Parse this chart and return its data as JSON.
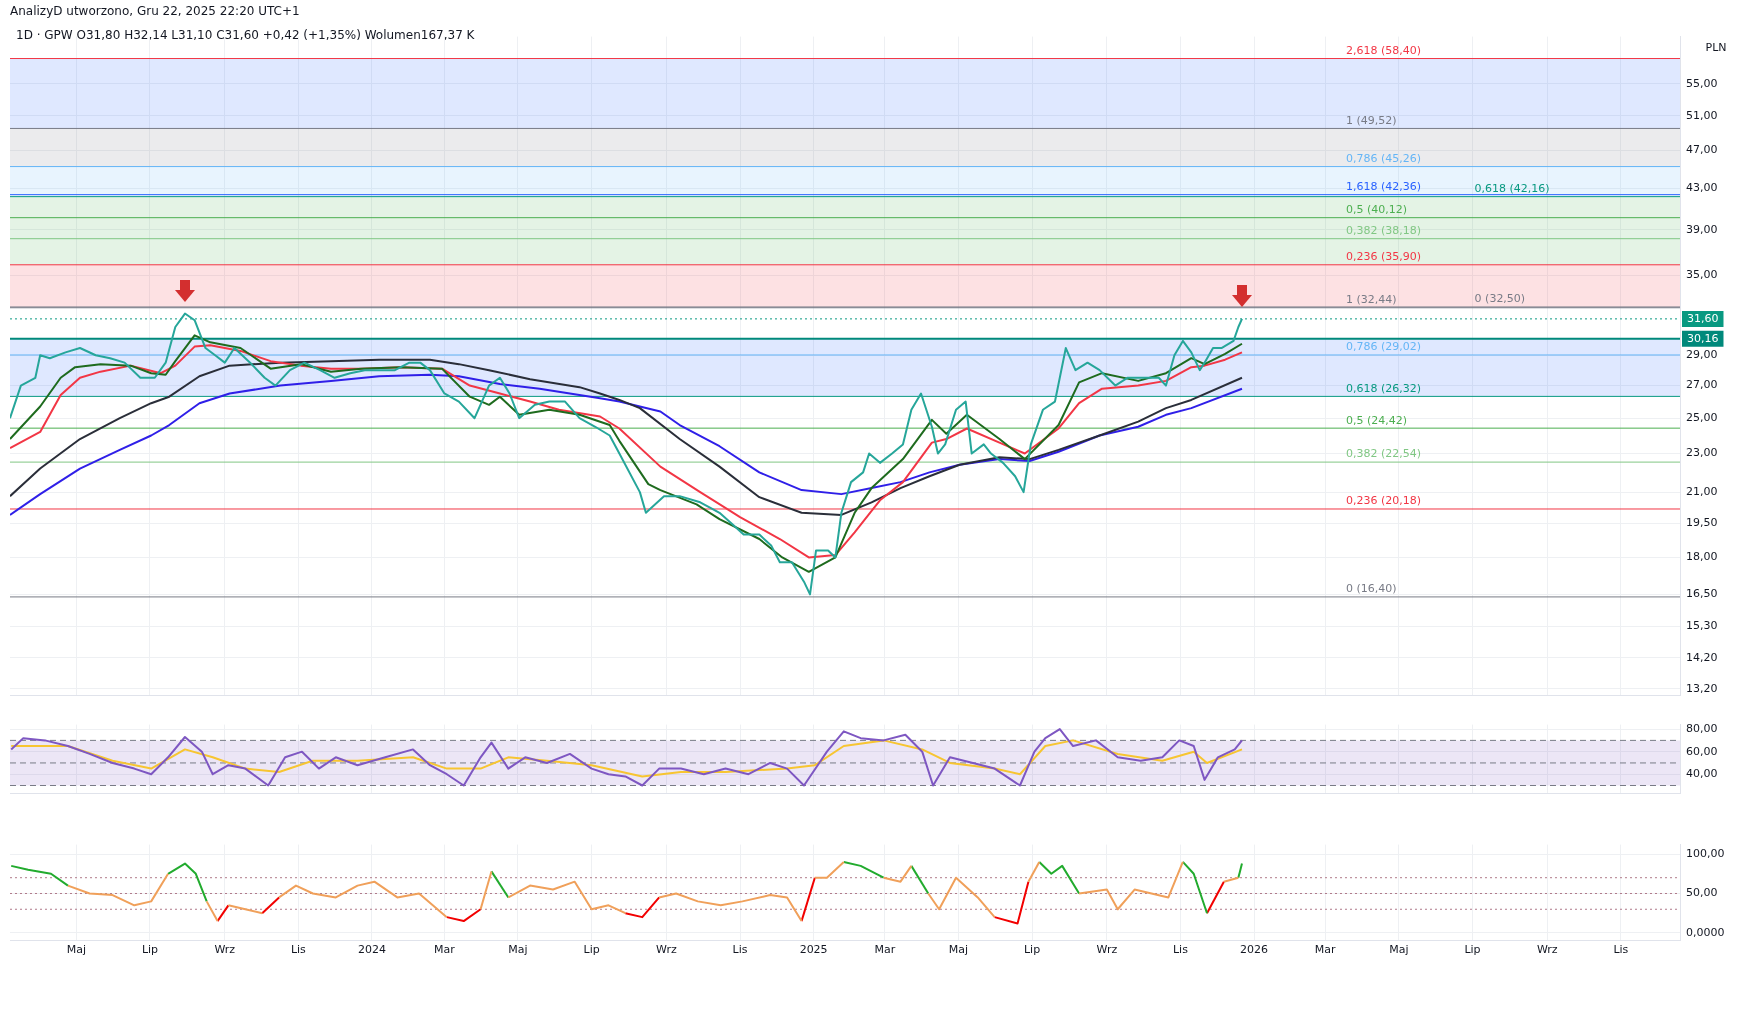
{
  "chart_data": [
    {
      "type": "line",
      "title": "AnalizyD utworzono, Gru 22, 2025 22:20 UTC+1",
      "subtitle": "1D · GPW O31,80 H32,14 L31,10 C31,60 +0,42 (+1,35%) Wolumen167,37 K",
      "ylabel": "PLN",
      "log": "y",
      "grid": true,
      "marker": "none",
      "tick_labels": "y",
      "xlim": [
        "2023-03-07",
        "2026-12-20"
      ],
      "xticks": [
        {
          "value": "2023-05-01",
          "label": null
        },
        {
          "value": "2023-07-01",
          "label": null
        },
        {
          "value": "2023-09-01",
          "label": null
        },
        {
          "value": "2023-11-01",
          "label": null
        },
        {
          "value": "2024-01-01",
          "label": null
        },
        {
          "value": "2024-03-01",
          "label": null
        },
        {
          "value": "2024-05-01",
          "label": null
        },
        {
          "value": "2024-07-01",
          "label": null
        },
        {
          "value": "2024-09-01",
          "label": null
        },
        {
          "value": "2024-11-01",
          "label": null
        },
        {
          "value": "2025-01-01",
          "label": null
        },
        {
          "value": "2025-03-01",
          "label": null
        },
        {
          "value": "2025-05-01",
          "label": null
        },
        {
          "value": "2025-07-01",
          "label": null
        },
        {
          "value": "2025-09-01",
          "label": null
        },
        {
          "value": "2025-11-01",
          "label": null
        },
        {
          "value": "2026-01-01",
          "label": null
        },
        {
          "value": "2026-03-01",
          "label": null
        },
        {
          "value": "2026-05-01",
          "label": null
        },
        {
          "value": "2026-07-01",
          "label": null
        },
        {
          "value": "2026-09-01",
          "label": null
        },
        {
          "value": "2026-11-01",
          "label": null
        }
      ],
      "ylim": [
        13.0,
        61.5
      ],
      "yticks": [
        {
          "value": 13.2,
          "label": "13,20"
        },
        {
          "value": 14.2,
          "label": "14,20"
        },
        {
          "value": 15.3,
          "label": "15,30"
        },
        {
          "value": 16.5,
          "label": "16,50"
        },
        {
          "value": 18,
          "label": "18,00"
        },
        {
          "value": 19.5,
          "label": "19,50"
        },
        {
          "value": 21,
          "label": "21,00"
        },
        {
          "value": 23,
          "label": "23,00"
        },
        {
          "value": 25,
          "label": "25,00"
        },
        {
          "value": 27,
          "label": "27,00"
        },
        {
          "value": 29,
          "label": "29,00"
        },
        {
          "value": 35,
          "label": "35,00"
        },
        {
          "value": 39,
          "label": "39,00"
        },
        {
          "value": 43,
          "label": "43,00"
        },
        {
          "value": 47,
          "label": "47,00"
        },
        {
          "value": 51,
          "label": "51,00"
        },
        {
          "value": 55,
          "label": "55,00"
        }
      ],
      "bands": [
        {
          "axis": "y",
          "from": 26.32,
          "to": 30.16,
          "color": "#2962ff"
        },
        {
          "axis": "y",
          "from": 32.5,
          "to": 35.9,
          "color": "#f23645"
        },
        {
          "axis": "y",
          "from": 35.9,
          "to": 42.16,
          "color": "#4caf50"
        },
        {
          "axis": "y",
          "from": 42.16,
          "to": 45.26,
          "color": "#64b5f6"
        },
        {
          "axis": "y",
          "from": 45.26,
          "to": 49.52,
          "color": "#787b86"
        },
        {
          "axis": "y",
          "from": 49.52,
          "to": 58.4,
          "color": "#2962ff"
        }
      ],
      "ref_lines": [
        {
          "axis": "y",
          "value": 58.4,
          "label": "2,618 (58,40)",
          "color": "#f23645"
        },
        {
          "axis": "y",
          "value": 49.52,
          "label": "1 (49,52)",
          "color": "#787b86"
        },
        {
          "axis": "y",
          "value": 45.26,
          "label": "0,786 (45,26)",
          "color": "#64b5f6"
        },
        {
          "axis": "y",
          "value": 42.36,
          "label": "1,618 (42,36)",
          "color": "#2962ff"
        },
        {
          "axis": "y",
          "value": 42.16,
          "label": "0,618 (42,16)",
          "color": "#089981"
        },
        {
          "axis": "y",
          "value": 40.12,
          "label": "0,5 (40,12)",
          "color": "#4caf50"
        },
        {
          "axis": "y",
          "value": 38.18,
          "label": "0,382 (38,18)",
          "color": "#81c784"
        },
        {
          "axis": "y",
          "value": 35.9,
          "label": "0,236 (35,90)",
          "color": "#f23645"
        },
        {
          "axis": "y",
          "value": 32.44,
          "label": "1 (32,44)",
          "color": "#787b86"
        },
        {
          "axis": "y",
          "value": 32.5,
          "label": "0 (32,50)",
          "color": "#787b86"
        },
        {
          "axis": "y",
          "value": 29.02,
          "label": "0,786 (29,02)",
          "color": "#64b5f6"
        },
        {
          "axis": "y",
          "value": 26.32,
          "label": "0,618 (26,32)",
          "color": "#089981"
        },
        {
          "axis": "y",
          "value": 24.42,
          "label": "0,5 (24,42)",
          "color": "#4caf50"
        },
        {
          "axis": "y",
          "value": 22.54,
          "label": "0,382 (22,54)",
          "color": "#81c784"
        },
        {
          "axis": "y",
          "value": 20.18,
          "label": "0,236 (20,18)",
          "color": "#f23645"
        },
        {
          "axis": "y",
          "value": 16.4,
          "label": "0 (16,40)",
          "color": "#787b86"
        },
        {
          "axis": "y",
          "value": 31.6,
          "label": "31,60",
          "color": "#089981",
          "line_style": "dotted"
        },
        {
          "axis": "y",
          "value": 30.16,
          "label": "30,16",
          "color": "#00897b",
          "line_style": "solid"
        }
      ],
      "series": [
        {
          "color": "#26a69a",
          "x": [
            "2023-03-07",
            "2023-03-16",
            "2023-03-28",
            "2023-04-01",
            "2023-04-09",
            "2023-04-22",
            "2023-05-04",
            "2023-05-17",
            "2023-05-29",
            "2023-06-10",
            "2023-06-23",
            "2023-07-05",
            "2023-07-14",
            "2023-07-22",
            "2023-07-30",
            "2023-08-07",
            "2023-08-16",
            "2023-08-24",
            "2023-09-01",
            "2023-09-09",
            "2023-09-22",
            "2023-10-04",
            "2023-10-13",
            "2023-10-25",
            "2023-11-06",
            "2023-11-19",
            "2023-12-01",
            "2023-12-14",
            "2023-12-26",
            "2024-01-07",
            "2024-01-20",
            "2024-02-01",
            "2024-02-10",
            "2024-02-18",
            "2024-03-01",
            "2024-03-13",
            "2024-03-26",
            "2024-04-07",
            "2024-04-16",
            "2024-04-24",
            "2024-05-02",
            "2024-05-15",
            "2024-05-27",
            "2024-06-09",
            "2024-06-21",
            "2024-07-04",
            "2024-07-16",
            "2024-07-24",
            "2024-08-10",
            "2024-08-15",
            "2024-08-30",
            "2024-09-12",
            "2024-09-29",
            "2024-10-15",
            "2024-10-25",
            "2024-11-04",
            "2024-11-17",
            "2024-11-27",
            "2024-12-04",
            "2024-12-14",
            "2024-12-24",
            "2024-12-29",
            "2025-01-03",
            "2025-01-13",
            "2025-01-19",
            "2025-01-24",
            "2025-02-01",
            "2025-02-11",
            "2025-02-16",
            "2025-02-25",
            "2025-03-07",
            "2025-03-16",
            "2025-03-23",
            "2025-03-31",
            "2025-04-09",
            "2025-04-14",
            "2025-04-20",
            "2025-04-29",
            "2025-05-07",
            "2025-05-12",
            "2025-05-22",
            "2025-05-28",
            "2025-06-07",
            "2025-06-17",
            "2025-06-24",
            "2025-06-30",
            "2025-07-10",
            "2025-07-20",
            "2025-07-29",
            "2025-08-06",
            "2025-08-16",
            "2025-08-26",
            "2025-09-08",
            "2025-09-18",
            "2025-10-01",
            "2025-10-14",
            "2025-10-20",
            "2025-10-27",
            "2025-11-03",
            "2025-11-10",
            "2025-11-17",
            "2025-11-21",
            "2025-11-28",
            "2025-12-05",
            "2025-12-15",
            "2025-12-19",
            "2025-12-22"
          ],
          "values": [
            25.0,
            27.0,
            27.5,
            29.0,
            28.8,
            29.2,
            29.5,
            29.0,
            28.8,
            28.5,
            27.5,
            27.5,
            28.5,
            31.0,
            32.0,
            31.5,
            29.5,
            29.0,
            28.5,
            29.5,
            28.5,
            27.5,
            27.0,
            28.0,
            28.5,
            28.0,
            27.5,
            27.8,
            28.0,
            28.0,
            28.0,
            28.5,
            28.5,
            28.0,
            26.5,
            26.0,
            25.0,
            27.0,
            27.5,
            26.5,
            25.0,
            25.8,
            26.0,
            26.0,
            25.0,
            24.5,
            24.0,
            23.0,
            21.0,
            20.0,
            20.8,
            20.8,
            20.5,
            20.0,
            19.5,
            19.0,
            19.0,
            18.5,
            17.8,
            17.8,
            17.0,
            16.5,
            18.3,
            18.3,
            18.0,
            20.0,
            21.5,
            22.0,
            23.0,
            22.5,
            23.0,
            23.5,
            25.5,
            26.5,
            24.5,
            23.0,
            23.5,
            25.5,
            26.0,
            23.0,
            23.5,
            23.0,
            22.5,
            21.8,
            21.0,
            23.5,
            25.5,
            26.0,
            29.5,
            28.0,
            28.5,
            28.0,
            27.0,
            27.5,
            27.5,
            27.5,
            27.0,
            29.0,
            30.0,
            29.2,
            28.0,
            28.5,
            29.5,
            29.5,
            30.0,
            31.0,
            31.6
          ]
        },
        {
          "color": "#1e6b1e",
          "x": [
            "2023-03-07",
            "2023-04-01",
            "2023-04-18",
            "2023-04-30",
            "2023-05-21",
            "2023-06-15",
            "2023-07-02",
            "2023-07-14",
            "2023-07-22",
            "2023-08-07",
            "2023-08-20",
            "2023-09-14",
            "2023-10-09",
            "2023-11-03",
            "2023-11-28",
            "2023-12-23",
            "2024-01-25",
            "2024-02-28",
            "2024-03-22",
            "2024-04-07",
            "2024-04-16",
            "2024-05-02",
            "2024-05-27",
            "2024-06-21",
            "2024-07-16",
            "2024-07-24",
            "2024-08-17",
            "2024-08-27",
            "2024-09-26",
            "2024-10-15",
            "2024-11-17",
            "2024-12-06",
            "2024-12-28",
            "2025-01-19",
            "2025-02-04",
            "2025-02-18",
            "2025-03-16",
            "2025-04-09",
            "2025-04-21",
            "2025-05-08",
            "2025-06-04",
            "2025-06-25",
            "2025-07-23",
            "2025-08-09",
            "2025-08-28",
            "2025-09-27",
            "2025-10-20",
            "2025-11-10",
            "2025-11-21",
            "2025-12-08",
            "2025-12-22"
          ],
          "values": [
            23.8,
            25.7,
            27.5,
            28.2,
            28.4,
            28.3,
            27.8,
            27.7,
            28.6,
            30.4,
            29.9,
            29.5,
            28.1,
            28.4,
            27.9,
            28.1,
            28.2,
            28.1,
            26.3,
            25.8,
            26.3,
            25.2,
            25.5,
            25.2,
            24.6,
            23.7,
            21.4,
            21.1,
            20.4,
            19.7,
            18.8,
            18.0,
            17.4,
            18.0,
            20.0,
            21.2,
            22.7,
            24.9,
            24.1,
            25.2,
            23.8,
            22.7,
            24.6,
            27.2,
            27.8,
            27.3,
            27.8,
            28.8,
            28.4,
            29.1,
            29.8
          ]
        },
        {
          "color": "#f23645",
          "x": [
            "2023-03-07",
            "2023-04-01",
            "2023-04-18",
            "2023-05-04",
            "2023-05-21",
            "2023-06-15",
            "2023-07-10",
            "2023-07-22",
            "2023-08-07",
            "2023-08-20",
            "2023-09-14",
            "2023-10-09",
            "2023-11-03",
            "2023-11-28",
            "2023-12-23",
            "2024-01-25",
            "2024-02-28",
            "2024-03-22",
            "2024-04-16",
            "2024-05-11",
            "2024-06-04",
            "2024-07-08",
            "2024-07-24",
            "2024-08-27",
            "2024-09-29",
            "2024-11-01",
            "2024-12-04",
            "2024-12-28",
            "2025-01-19",
            "2025-02-04",
            "2025-02-25",
            "2025-03-16",
            "2025-04-09",
            "2025-04-21",
            "2025-05-08",
            "2025-06-04",
            "2025-06-25",
            "2025-07-23",
            "2025-08-09",
            "2025-08-28",
            "2025-09-27",
            "2025-10-20",
            "2025-11-10",
            "2025-11-21",
            "2025-12-08",
            "2025-12-22"
          ],
          "values": [
            23.3,
            24.2,
            26.4,
            27.5,
            27.9,
            28.3,
            27.8,
            28.3,
            29.6,
            29.7,
            29.3,
            28.6,
            28.3,
            28.1,
            28.1,
            28.2,
            28.1,
            27.0,
            26.5,
            26.0,
            25.5,
            25.1,
            24.4,
            22.3,
            21.0,
            19.8,
            18.8,
            18.0,
            18.1,
            19.1,
            20.6,
            21.5,
            23.6,
            23.8,
            24.4,
            23.6,
            23.0,
            24.4,
            25.9,
            26.8,
            27.0,
            27.3,
            28.2,
            28.3,
            28.7,
            29.2
          ]
        },
        {
          "color": "#2a2e39",
          "x": [
            "2023-03-07",
            "2023-04-01",
            "2023-05-04",
            "2023-06-06",
            "2023-07-02",
            "2023-07-17",
            "2023-08-11",
            "2023-09-05",
            "2023-10-17",
            "2023-11-28",
            "2024-01-07",
            "2024-02-18",
            "2024-03-13",
            "2024-04-07",
            "2024-05-11",
            "2024-06-21",
            "2024-07-08",
            "2024-07-24",
            "2024-08-10",
            "2024-09-12",
            "2024-10-15",
            "2024-11-17",
            "2024-12-22",
            "2025-01-24",
            "2025-02-18",
            "2025-03-14",
            "2025-04-07",
            "2025-05-02",
            "2025-06-04",
            "2025-06-29",
            "2025-07-23",
            "2025-08-26",
            "2025-09-27",
            "2025-10-20",
            "2025-11-10",
            "2025-12-22"
          ],
          "values": [
            20.8,
            22.2,
            23.8,
            25.0,
            25.9,
            26.3,
            27.6,
            28.3,
            28.5,
            28.6,
            28.7,
            28.7,
            28.4,
            28.0,
            27.4,
            26.9,
            26.5,
            26.1,
            25.6,
            23.8,
            22.3,
            20.75,
            20.0,
            19.9,
            20.5,
            21.2,
            21.8,
            22.4,
            22.8,
            22.7,
            23.2,
            24.0,
            24.8,
            25.6,
            26.1,
            27.5
          ]
        },
        {
          "color": "#2f1fe8",
          "x": [
            "2023-03-07",
            "2023-04-01",
            "2023-05-04",
            "2023-06-06",
            "2023-07-02",
            "2023-07-17",
            "2023-08-11",
            "2023-09-05",
            "2023-10-17",
            "2023-11-28",
            "2024-01-07",
            "2024-02-18",
            "2024-03-13",
            "2024-04-16",
            "2024-05-19",
            "2024-07-08",
            "2024-07-24",
            "2024-08-27",
            "2024-09-12",
            "2024-10-15",
            "2024-11-17",
            "2024-12-22",
            "2025-01-24",
            "2025-02-18",
            "2025-03-14",
            "2025-04-07",
            "2025-05-02",
            "2025-06-04",
            "2025-06-29",
            "2025-07-23",
            "2025-08-26",
            "2025-09-27",
            "2025-10-20",
            "2025-11-10",
            "2025-12-22"
          ],
          "values": [
            19.9,
            20.9,
            22.2,
            23.2,
            24.0,
            24.6,
            25.9,
            26.5,
            27.0,
            27.3,
            27.6,
            27.7,
            27.6,
            27.1,
            26.8,
            26.2,
            26.0,
            25.4,
            24.6,
            23.4,
            22.0,
            21.1,
            20.9,
            21.2,
            21.5,
            22.0,
            22.4,
            22.7,
            22.6,
            23.1,
            24.0,
            24.5,
            25.2,
            25.6,
            26.8
          ]
        }
      ]
    },
    {
      "type": "line",
      "grid": true,
      "marker": "none",
      "tick_labels": "y",
      "xlim": [
        "2023-03-07",
        "2026-12-20"
      ],
      "xticks": [
        {
          "value": "2023-05-01",
          "label": null
        },
        {
          "value": "2023-07-01",
          "label": null
        },
        {
          "value": "2023-09-01",
          "label": null
        },
        {
          "value": "2023-11-01",
          "label": null
        },
        {
          "value": "2024-01-01",
          "label": null
        },
        {
          "value": "2024-03-01",
          "label": null
        },
        {
          "value": "2024-05-01",
          "label": null
        },
        {
          "value": "2024-07-01",
          "label": null
        },
        {
          "value": "2024-09-01",
          "label": null
        },
        {
          "value": "2024-11-01",
          "label": null
        },
        {
          "value": "2025-01-01",
          "label": null
        },
        {
          "value": "2025-03-01",
          "label": null
        },
        {
          "value": "2025-05-01",
          "label": null
        },
        {
          "value": "2025-07-01",
          "label": null
        },
        {
          "value": "2025-09-01",
          "label": null
        },
        {
          "value": "2025-11-01",
          "label": null
        },
        {
          "value": "2026-01-01",
          "label": null
        },
        {
          "value": "2026-03-01",
          "label": null
        },
        {
          "value": "2026-05-01",
          "label": null
        },
        {
          "value": "2026-07-01",
          "label": null
        },
        {
          "value": "2026-09-01",
          "label": null
        },
        {
          "value": "2026-11-01",
          "label": null
        }
      ],
      "ylim": [
        23,
        84
      ],
      "yticks": [
        {
          "value": 40,
          "label": "40,00"
        },
        {
          "value": 60,
          "label": "60,00"
        },
        {
          "value": 80,
          "label": "80,00"
        }
      ],
      "bands": [
        {
          "axis": "y",
          "from": 30,
          "to": 70,
          "color": "#7e57c2"
        }
      ],
      "ref_lines": [
        {
          "axis": "y",
          "value": 70,
          "color": "#787b86",
          "line_style": "dashed"
        },
        {
          "axis": "y",
          "value": 50,
          "color": "#787b86",
          "line_style": "dashed"
        },
        {
          "axis": "y",
          "value": 30,
          "color": "#787b86",
          "line_style": "dashed"
        }
      ],
      "series": [
        {
          "color": "#7e57c2",
          "x": [
            "2023-03-08",
            "2023-03-18",
            "2023-04-05",
            "2023-04-24",
            "2023-05-12",
            "2023-05-31",
            "2023-06-18",
            "2023-07-02",
            "2023-07-16",
            "2023-07-30",
            "2023-08-13",
            "2023-08-22",
            "2023-09-04",
            "2023-09-18",
            "2023-10-07",
            "2023-10-21",
            "2023-11-04",
            "2023-11-18",
            "2023-12-02",
            "2023-12-20",
            "2024-01-12",
            "2024-02-04",
            "2024-02-18",
            "2024-03-03",
            "2024-03-17",
            "2024-03-31",
            "2024-04-09",
            "2024-04-23",
            "2024-05-07",
            "2024-05-25",
            "2024-06-13",
            "2024-07-01",
            "2024-07-15",
            "2024-07-29",
            "2024-08-12",
            "2024-08-26",
            "2024-09-13",
            "2024-10-02",
            "2024-10-20",
            "2024-11-08",
            "2024-11-26",
            "2024-12-10",
            "2024-12-24",
            "2025-01-12",
            "2025-01-26",
            "2025-02-09",
            "2025-02-28",
            "2025-03-18",
            "2025-04-01",
            "2025-04-10",
            "2025-04-24",
            "2025-05-13",
            "2025-05-31",
            "2025-06-21",
            "2025-07-03",
            "2025-07-12",
            "2025-07-24",
            "2025-08-04",
            "2025-08-23",
            "2025-09-10",
            "2025-09-29",
            "2025-10-17",
            "2025-10-31",
            "2025-11-12",
            "2025-11-21",
            "2025-12-02",
            "2025-12-16",
            "2025-12-22"
          ],
          "values": [
            62,
            72,
            70,
            65,
            58,
            50,
            45,
            40,
            55,
            73,
            60,
            40,
            48,
            45,
            30,
            55,
            60,
            45,
            55,
            48,
            55,
            62,
            48,
            40,
            30,
            55,
            68,
            45,
            55,
            50,
            58,
            45,
            40,
            38,
            30,
            45,
            45,
            40,
            45,
            40,
            50,
            45,
            30,
            60,
            78,
            72,
            70,
            75,
            60,
            30,
            55,
            50,
            45,
            30,
            60,
            72,
            80,
            65,
            70,
            55,
            52,
            55,
            70,
            65,
            35,
            55,
            62,
            70
          ]
        },
        {
          "color": "#f7c531",
          "x": [
            "2023-03-08",
            "2023-04-24",
            "2023-05-31",
            "2023-07-02",
            "2023-07-30",
            "2023-08-22",
            "2023-09-18",
            "2023-10-16",
            "2023-11-13",
            "2023-12-20",
            "2024-02-04",
            "2024-03-03",
            "2024-03-31",
            "2024-04-23",
            "2024-05-25",
            "2024-07-01",
            "2024-08-12",
            "2024-09-13",
            "2024-10-20",
            "2024-12-10",
            "2025-01-02",
            "2025-01-26",
            "2025-02-28",
            "2025-04-01",
            "2025-04-24",
            "2025-05-31",
            "2025-06-21",
            "2025-07-12",
            "2025-08-04",
            "2025-09-10",
            "2025-10-17",
            "2025-11-12",
            "2025-11-23",
            "2025-12-22"
          ],
          "values": [
            65,
            65,
            52,
            45,
            62,
            55,
            45,
            42,
            52,
            52,
            55,
            45,
            45,
            55,
            52,
            48,
            38,
            42,
            42,
            45,
            48,
            65,
            70,
            62,
            50,
            45,
            40,
            65,
            70,
            58,
            52,
            60,
            50,
            62
          ]
        }
      ]
    },
    {
      "type": "line",
      "grid": true,
      "marker": "none",
      "xlim": [
        "2023-03-07",
        "2026-12-20"
      ],
      "xticks": [
        {
          "value": "2023-05-01",
          "label": "Maj"
        },
        {
          "value": "2023-07-01",
          "label": "Lip"
        },
        {
          "value": "2023-09-01",
          "label": "Wrz"
        },
        {
          "value": "2023-11-01",
          "label": "Lis"
        },
        {
          "value": "2024-01-01",
          "label": "2024"
        },
        {
          "value": "2024-03-01",
          "label": "Mar"
        },
        {
          "value": "2024-05-01",
          "label": "Maj"
        },
        {
          "value": "2024-07-01",
          "label": "Lip"
        },
        {
          "value": "2024-09-01",
          "label": "Wrz"
        },
        {
          "value": "2024-11-01",
          "label": "Lis"
        },
        {
          "value": "2025-01-01",
          "label": "2025"
        },
        {
          "value": "2025-03-01",
          "label": "Mar"
        },
        {
          "value": "2025-05-01",
          "label": "Maj"
        },
        {
          "value": "2025-07-01",
          "label": "Lip"
        },
        {
          "value": "2025-09-01",
          "label": "Wrz"
        },
        {
          "value": "2025-11-01",
          "label": "Lis"
        },
        {
          "value": "2026-01-01",
          "label": "2026"
        },
        {
          "value": "2026-03-01",
          "label": "Mar"
        },
        {
          "value": "2026-05-01",
          "label": "Maj"
        },
        {
          "value": "2026-07-01",
          "label": "Lip"
        },
        {
          "value": "2026-09-01",
          "label": "Wrz"
        },
        {
          "value": "2026-11-01",
          "label": "Lis"
        }
      ],
      "ylim": [
        -10,
        112
      ],
      "yticks": [
        {
          "value": 0,
          "label": "0,0000"
        },
        {
          "value": 50,
          "label": "50,00"
        },
        {
          "value": 100,
          "label": "100,00"
        }
      ],
      "ref_lines": [
        {
          "axis": "y",
          "value": 70,
          "color": "#b07a8a",
          "line_style": "dotted"
        },
        {
          "axis": "y",
          "value": 50,
          "color": "#b07a8a",
          "line_style": "dotted"
        },
        {
          "axis": "y",
          "value": 30,
          "color": "#b07a8a",
          "line_style": "dotted"
        }
      ],
      "series": [
        {
          "color": "#f0a05a",
          "x": [
            "2023-04-24",
            "2023-05-12",
            "2023-05-31",
            "2023-06-18",
            "2023-07-02",
            "2023-07-16"
          ],
          "values": [
            60,
            50,
            48,
            35,
            40,
            75
          ]
        },
        {
          "color": "#f0a05a",
          "x": [
            "2023-08-17",
            "2023-08-26"
          ],
          "values": [
            40,
            15
          ]
        },
        {
          "color": "#f0a05a",
          "x": [
            "2023-09-04",
            "2023-09-18",
            "2023-10-02"
          ],
          "values": [
            35,
            30,
            25
          ]
        },
        {
          "color": "#f0a05a",
          "x": [
            "2023-10-16",
            "2023-10-30",
            "2023-11-13",
            "2023-12-02",
            "2023-12-20",
            "2024-01-03",
            "2024-01-22",
            "2024-02-09",
            "2024-03-03"
          ],
          "values": [
            45,
            60,
            50,
            45,
            60,
            65,
            45,
            50,
            20
          ]
        },
        {
          "color": "#f0a05a",
          "x": [
            "2024-03-31",
            "2024-04-09"
          ],
          "values": [
            30,
            78
          ]
        },
        {
          "color": "#f0a05a",
          "x": [
            "2024-04-23",
            "2024-05-11",
            "2024-05-30",
            "2024-06-17",
            "2024-07-01",
            "2024-07-15",
            "2024-07-29"
          ],
          "values": [
            45,
            60,
            55,
            65,
            30,
            35,
            25
          ]
        },
        {
          "color": "#f0a05a",
          "x": [
            "2024-08-26",
            "2024-09-09",
            "2024-09-27",
            "2024-10-16",
            "2024-11-03",
            "2024-11-26",
            "2024-12-10",
            "2024-12-22"
          ],
          "values": [
            45,
            50,
            40,
            35,
            40,
            48,
            45,
            15
          ]
        },
        {
          "color": "#f0a05a",
          "x": [
            "2025-01-02",
            "2025-01-12",
            "2025-01-26"
          ],
          "values": [
            70,
            70,
            90
          ]
        },
        {
          "color": "#f0a05a",
          "x": [
            "2025-02-28",
            "2025-03-14",
            "2025-03-23"
          ],
          "values": [
            70,
            65,
            85
          ]
        },
        {
          "color": "#f0a05a",
          "x": [
            "2025-04-06",
            "2025-04-15",
            "2025-04-29",
            "2025-05-17",
            "2025-05-31"
          ],
          "values": [
            50,
            30,
            70,
            45,
            20
          ]
        },
        {
          "color": "#f0a05a",
          "x": [
            "2025-06-28",
            "2025-07-07"
          ],
          "values": [
            65,
            90
          ]
        },
        {
          "color": "#f0a05a",
          "x": [
            "2025-08-09",
            "2025-09-01",
            "2025-09-10",
            "2025-09-24",
            "2025-10-08",
            "2025-10-22",
            "2025-11-03"
          ],
          "values": [
            50,
            55,
            30,
            55,
            50,
            45,
            90
          ]
        },
        {
          "color": "#f0a05a",
          "x": [
            "2025-12-07",
            "2025-12-19"
          ],
          "values": [
            65,
            70
          ]
        },
        {
          "color": "#22ab2e",
          "x": [
            "2023-03-08",
            "2023-03-22",
            "2023-04-10",
            "2023-04-24"
          ],
          "values": [
            85,
            80,
            75,
            60
          ]
        },
        {
          "color": "#22ab2e",
          "x": [
            "2023-07-16",
            "2023-07-30",
            "2023-08-08",
            "2023-08-17"
          ],
          "values": [
            75,
            88,
            75,
            40
          ]
        },
        {
          "color": "#22ab2e",
          "x": [
            "2024-04-09",
            "2024-04-23"
          ],
          "values": [
            78,
            45
          ]
        },
        {
          "color": "#22ab2e",
          "x": [
            "2025-01-26",
            "2025-02-09",
            "2025-02-28"
          ],
          "values": [
            90,
            85,
            70
          ]
        },
        {
          "color": "#22ab2e",
          "x": [
            "2025-03-23",
            "2025-04-06"
          ],
          "values": [
            85,
            50
          ]
        },
        {
          "color": "#22ab2e",
          "x": [
            "2025-07-07",
            "2025-07-17",
            "2025-07-26",
            "2025-08-09"
          ],
          "values": [
            90,
            75,
            85,
            50
          ]
        },
        {
          "color": "#22ab2e",
          "x": [
            "2025-11-03",
            "2025-11-12",
            "2025-11-23"
          ],
          "values": [
            90,
            75,
            25
          ]
        },
        {
          "color": "#22ab2e",
          "x": [
            "2025-12-19",
            "2025-12-22"
          ],
          "values": [
            70,
            88
          ]
        },
        {
          "color": "#f20000",
          "x": [
            "2023-08-26",
            "2023-09-04"
          ],
          "values": [
            15,
            35
          ]
        },
        {
          "color": "#f20000",
          "x": [
            "2023-10-02",
            "2023-10-16"
          ],
          "values": [
            25,
            45
          ]
        },
        {
          "color": "#f20000",
          "x": [
            "2024-03-03",
            "2024-03-17",
            "2024-03-31"
          ],
          "values": [
            20,
            15,
            30
          ]
        },
        {
          "color": "#f20000",
          "x": [
            "2024-07-29",
            "2024-08-12",
            "2024-08-26"
          ],
          "values": [
            25,
            20,
            45
          ]
        },
        {
          "color": "#f20000",
          "x": [
            "2024-12-22",
            "2025-01-02"
          ],
          "values": [
            15,
            70
          ]
        },
        {
          "color": "#f20000",
          "x": [
            "2025-05-31",
            "2025-06-19",
            "2025-06-28"
          ],
          "values": [
            20,
            12,
            65
          ]
        },
        {
          "color": "#f20000",
          "x": [
            "2025-11-23",
            "2025-12-07"
          ],
          "values": [
            25,
            65
          ]
        }
      ]
    }
  ]
}
